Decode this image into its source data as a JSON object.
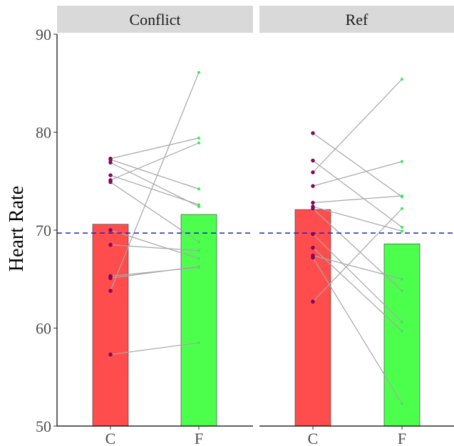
{
  "chart_data": {
    "type": "bar",
    "ylabel": "Heart Rate",
    "ylim": [
      50,
      90
    ],
    "yticks": [
      50,
      60,
      70,
      80,
      90
    ],
    "categories": [
      "C",
      "F"
    ],
    "reference_line": 69.7,
    "colors": {
      "C": "#ff4d4d",
      "F": "#4dff4d",
      "C_point": "#990066",
      "F_point": "#33ee55",
      "line": "#a6a6a6",
      "ref": "#2222cc",
      "strip": "#d9d9d9"
    },
    "panels": [
      {
        "name": "Conflict",
        "bar_values": {
          "C": 70.6,
          "F": 71.6
        },
        "pairs": [
          {
            "C": 77.3,
            "F": 79.4
          },
          {
            "C": 77.2,
            "F": 74.2
          },
          {
            "C": 76.9,
            "F": 72.4
          },
          {
            "C": 75.6,
            "F": 72.6
          },
          {
            "C": 75.1,
            "F": 78.9
          },
          {
            "C": 74.9,
            "F": 68.8
          },
          {
            "C": 70.0,
            "F": 67.1
          },
          {
            "C": 68.5,
            "F": 67.9
          },
          {
            "C": 65.3,
            "F": 66.2
          },
          {
            "C": 65.1,
            "F": 66.3
          },
          {
            "C": 63.8,
            "F": 86.1
          },
          {
            "C": 57.3,
            "F": 58.5
          }
        ]
      },
      {
        "name": "Ref",
        "bar_values": {
          "C": 72.1,
          "F": 68.6
        },
        "pairs": [
          {
            "C": 79.9,
            "F": 73.4
          },
          {
            "C": 77.1,
            "F": 70.3
          },
          {
            "C": 75.9,
            "F": 85.4
          },
          {
            "C": 74.5,
            "F": 77.0
          },
          {
            "C": 72.8,
            "F": 73.5
          },
          {
            "C": 72.4,
            "F": 69.9
          },
          {
            "C": 72.2,
            "F": 63.8
          },
          {
            "C": 69.6,
            "F": 60.6
          },
          {
            "C": 68.2,
            "F": 59.7
          },
          {
            "C": 67.4,
            "F": 65.0
          },
          {
            "C": 67.2,
            "F": 52.3
          },
          {
            "C": 62.7,
            "F": 72.2
          }
        ]
      }
    ]
  }
}
